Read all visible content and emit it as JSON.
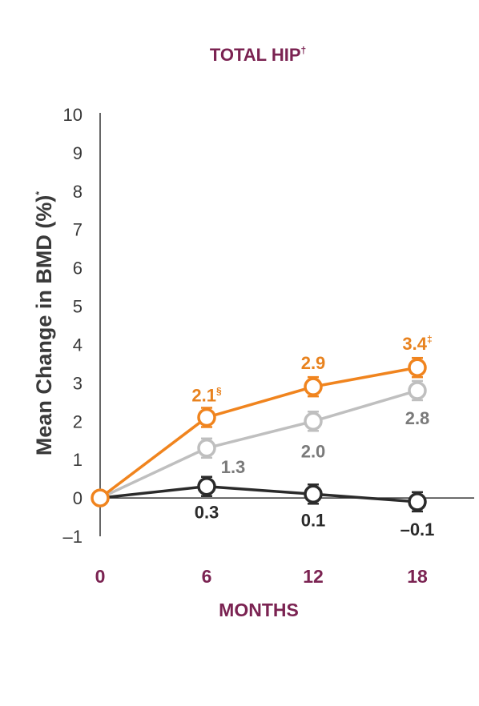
{
  "chart_data": {
    "type": "line",
    "title": "TOTAL HIP",
    "title_superscript": "†",
    "ylabel": "Mean Change in BMD (%)",
    "ylabel_superscript": "*",
    "xlabel": "MONTHS",
    "x": [
      0,
      6,
      12,
      18
    ],
    "x_tick_labels": [
      "0",
      "6",
      "12",
      "18"
    ],
    "ylim": [
      -1,
      10
    ],
    "y_ticks": [
      10,
      9,
      8,
      7,
      6,
      5,
      4,
      3,
      2,
      1,
      0,
      -1
    ],
    "y_tick_labels": [
      "10",
      "9",
      "8",
      "7",
      "6",
      "5",
      "4",
      "3",
      "2",
      "1",
      "0",
      "–1"
    ],
    "grid": false,
    "series": [
      {
        "color": "#f0841e",
        "values": [
          0,
          2.1,
          2.9,
          3.4
        ],
        "labels": [
          "",
          "2.1",
          "2.9",
          "3.4"
        ],
        "label_marks": [
          "",
          "§",
          "",
          "‡"
        ],
        "label_color": "#e8821e"
      },
      {
        "color": "#bfbfbf",
        "values": [
          0,
          1.3,
          2.0,
          2.8
        ],
        "labels": [
          "",
          "1.3",
          "2.0",
          "2.8"
        ],
        "label_marks": [
          "",
          "",
          "",
          ""
        ],
        "label_color": "#7a7a7a"
      },
      {
        "color": "#2b2b2b",
        "values": [
          0,
          0.3,
          0.1,
          -0.1
        ],
        "labels": [
          "",
          "0.3",
          "0.1",
          "–0.1"
        ],
        "label_marks": [
          "",
          "",
          "",
          ""
        ],
        "label_color": "#2b2b2b"
      }
    ],
    "accent_color": "#7b2352"
  }
}
